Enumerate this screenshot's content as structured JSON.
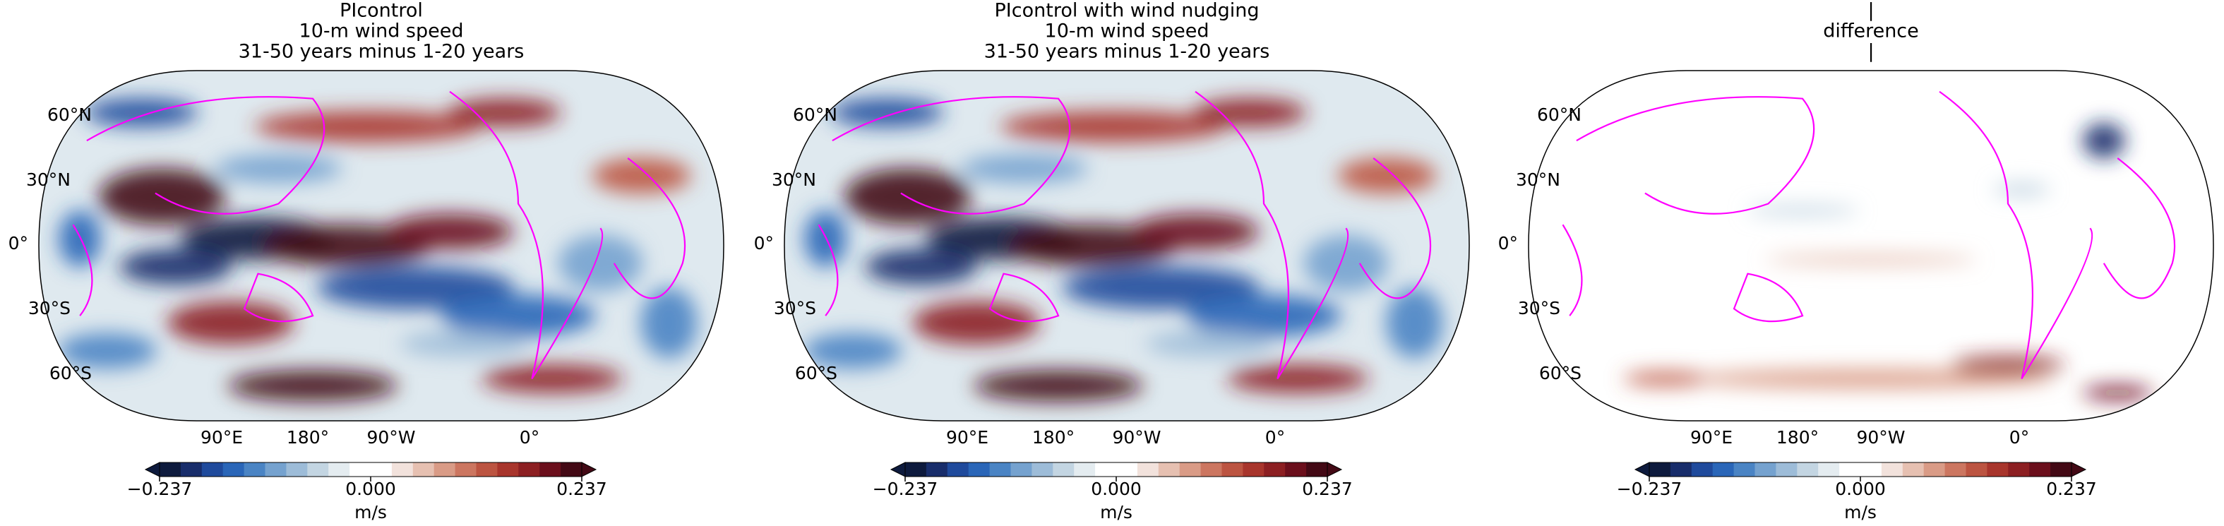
{
  "panels": [
    {
      "title": [
        "PIcontrol",
        "10-m wind speed",
        "31-50 years minus 1-20 years"
      ],
      "lat_labels": [
        "60°N",
        "30°N",
        "0°",
        "30°S",
        "60°S"
      ],
      "lon_labels": [
        "90°E",
        "180°",
        "90°W",
        "0°"
      ],
      "colorbar": {
        "lim": [
          -0.237,
          0.237
        ],
        "ticks": [
          {
            "value": -0.237,
            "label": "−0.237"
          },
          {
            "value": 0,
            "label": "0.000"
          },
          {
            "value": 0.237,
            "label": "0.237"
          }
        ],
        "label": "m/s"
      }
    },
    {
      "title": [
        "PIcontrol with wind nudging",
        "10-m wind speed",
        "31-50 years minus 1-20 years"
      ],
      "lat_labels": [
        "60°N",
        "30°N",
        "0°",
        "30°S",
        "60°S"
      ],
      "lon_labels": [
        "90°E",
        "180°",
        "90°W",
        "0°"
      ],
      "colorbar": {
        "lim": [
          -0.237,
          0.237
        ],
        "ticks": [
          {
            "value": -0.237,
            "label": "−0.237"
          },
          {
            "value": 0,
            "label": "0.000"
          },
          {
            "value": 0.237,
            "label": "0.237"
          }
        ],
        "label": "m/s"
      }
    },
    {
      "title": [
        "|",
        "difference",
        "|"
      ],
      "lat_labels": [
        "60°N",
        "30°N",
        "0°",
        "30°S",
        "60°S"
      ],
      "lon_labels": [
        "90°E",
        "180°",
        "90°W",
        "0°"
      ],
      "colorbar": {
        "lim": [
          -0.237,
          0.237
        ],
        "ticks": [
          {
            "value": -0.237,
            "label": "−0.237"
          },
          {
            "value": 0,
            "label": "0.000"
          },
          {
            "value": 0.237,
            "label": "0.237"
          }
        ],
        "label": "m/s"
      }
    }
  ],
  "colormap": [
    "#0d1a3d",
    "#182d6b",
    "#1f4a9c",
    "#2a66b8",
    "#4a84c4",
    "#75a2cf",
    "#9dbcd8",
    "#c3d5e2",
    "#e4ecf0",
    "#ffffff",
    "#ffffff",
    "#f2e2dc",
    "#e6c0b1",
    "#d99b86",
    "#cc7660",
    "#bc5441",
    "#a8352c",
    "#8c1f22",
    "#6b0f1c",
    "#430915"
  ],
  "coast_color": "#ff00ff"
}
